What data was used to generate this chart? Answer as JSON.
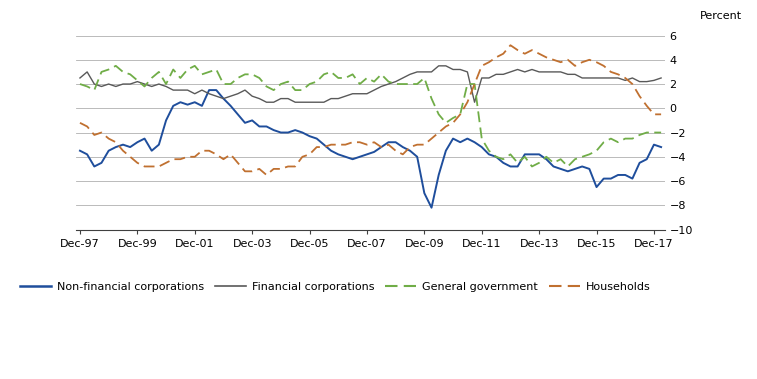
{
  "ylabel": "Percent",
  "ylim": [
    -10,
    7
  ],
  "yticks": [
    -10,
    -8,
    -6,
    -4,
    -2,
    0,
    2,
    4,
    6
  ],
  "xlabels": [
    "Dec-97",
    "Dec-99",
    "Dec-01",
    "Dec-03",
    "Dec-05",
    "Dec-07",
    "Dec-09",
    "Dec-11",
    "Dec-13",
    "Dec-15",
    "Dec-17"
  ],
  "colors": {
    "non_financial": "#1f4e9c",
    "financial": "#595959",
    "general_govt": "#70ad47",
    "households": "#c07030"
  },
  "non_financial_corporations": [
    -3.5,
    -3.8,
    -4.8,
    -4.5,
    -3.5,
    -3.2,
    -3.0,
    -3.2,
    -2.8,
    -2.5,
    -3.5,
    -3.0,
    -1.0,
    0.2,
    0.5,
    0.3,
    0.5,
    0.2,
    1.5,
    1.5,
    0.8,
    0.2,
    -0.5,
    -1.2,
    -1.0,
    -1.5,
    -1.5,
    -1.8,
    -2.0,
    -2.0,
    -1.8,
    -2.0,
    -2.3,
    -2.5,
    -3.0,
    -3.5,
    -3.8,
    -4.0,
    -4.2,
    -4.0,
    -3.8,
    -3.6,
    -3.2,
    -2.8,
    -2.8,
    -3.2,
    -3.5,
    -4.0,
    -7.0,
    -8.2,
    -5.5,
    -3.5,
    -2.5,
    -2.8,
    -2.5,
    -2.8,
    -3.2,
    -3.8,
    -4.0,
    -4.5,
    -4.8,
    -4.8,
    -3.8,
    -3.8,
    -3.8,
    -4.2,
    -4.8,
    -5.0,
    -5.2,
    -5.0,
    -4.8,
    -5.0,
    -6.5,
    -5.8,
    -5.8,
    -5.5,
    -5.5,
    -5.8,
    -4.5,
    -4.2,
    -3.0,
    -3.2
  ],
  "financial_corporations": [
    2.5,
    3.0,
    2.0,
    1.8,
    2.0,
    1.8,
    2.0,
    2.0,
    2.2,
    2.0,
    1.8,
    2.0,
    1.8,
    1.5,
    1.5,
    1.5,
    1.2,
    1.5,
    1.2,
    1.0,
    0.8,
    1.0,
    1.2,
    1.5,
    1.0,
    0.8,
    0.5,
    0.5,
    0.8,
    0.8,
    0.5,
    0.5,
    0.5,
    0.5,
    0.5,
    0.8,
    0.8,
    1.0,
    1.2,
    1.2,
    1.2,
    1.5,
    1.8,
    2.0,
    2.2,
    2.5,
    2.8,
    3.0,
    3.0,
    3.0,
    3.5,
    3.5,
    3.2,
    3.2,
    3.0,
    0.5,
    2.5,
    2.5,
    2.8,
    2.8,
    3.0,
    3.2,
    3.0,
    3.2,
    3.0,
    3.0,
    3.0,
    3.0,
    2.8,
    2.8,
    2.5,
    2.5,
    2.5,
    2.5,
    2.5,
    2.5,
    2.3,
    2.5,
    2.2,
    2.2,
    2.3,
    2.5
  ],
  "general_government": [
    2.0,
    1.8,
    1.5,
    3.0,
    3.2,
    3.5,
    3.0,
    2.8,
    2.3,
    1.8,
    2.5,
    3.0,
    2.0,
    3.2,
    2.5,
    3.2,
    3.5,
    2.8,
    3.0,
    3.2,
    2.0,
    2.0,
    2.5,
    2.8,
    2.8,
    2.5,
    1.8,
    1.5,
    2.0,
    2.2,
    1.5,
    1.5,
    2.0,
    2.2,
    2.8,
    3.0,
    2.5,
    2.5,
    2.8,
    2.0,
    2.5,
    2.2,
    2.8,
    2.2,
    2.0,
    2.0,
    2.0,
    2.0,
    2.5,
    0.8,
    -0.5,
    -1.2,
    -0.8,
    -0.5,
    2.0,
    2.0,
    -2.5,
    -3.5,
    -4.0,
    -4.2,
    -3.8,
    -4.5,
    -4.0,
    -4.8,
    -4.5,
    -4.0,
    -4.5,
    -4.2,
    -4.8,
    -4.2,
    -4.0,
    -3.8,
    -3.5,
    -2.8,
    -2.5,
    -2.8,
    -2.5,
    -2.5,
    -2.2,
    -2.0,
    -2.0,
    -2.0
  ],
  "households": [
    -1.2,
    -1.5,
    -2.2,
    -2.0,
    -2.5,
    -2.8,
    -3.5,
    -4.0,
    -4.5,
    -4.8,
    -4.8,
    -4.8,
    -4.5,
    -4.2,
    -4.2,
    -4.0,
    -4.0,
    -3.5,
    -3.5,
    -3.8,
    -4.2,
    -3.8,
    -4.5,
    -5.2,
    -5.2,
    -5.0,
    -5.5,
    -5.0,
    -5.0,
    -4.8,
    -4.8,
    -4.0,
    -3.8,
    -3.2,
    -3.2,
    -3.0,
    -3.0,
    -3.0,
    -2.8,
    -2.8,
    -3.0,
    -2.8,
    -3.2,
    -3.0,
    -3.5,
    -3.8,
    -3.2,
    -3.0,
    -3.0,
    -2.5,
    -2.0,
    -1.5,
    -1.2,
    -0.5,
    0.5,
    2.0,
    3.5,
    3.8,
    4.2,
    4.5,
    5.2,
    4.8,
    4.5,
    4.8,
    4.5,
    4.2,
    4.0,
    3.8,
    4.0,
    3.5,
    3.8,
    4.0,
    3.8,
    3.5,
    3.0,
    2.8,
    2.5,
    2.0,
    1.0,
    0.2,
    -0.5,
    -0.5
  ]
}
